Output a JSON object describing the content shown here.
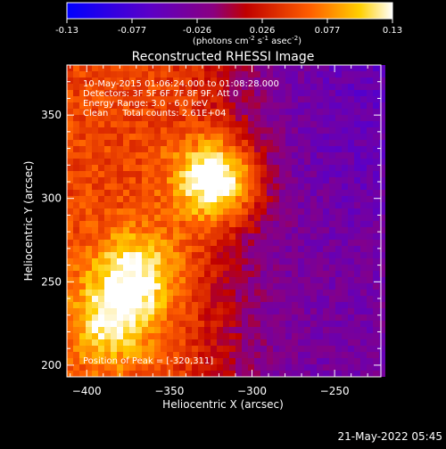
{
  "colorbar": {
    "tick_labels": [
      "-0.13",
      "-0.077",
      "-0.026",
      "0.026",
      "0.077",
      "0.13"
    ],
    "unit_prefix": "(photons cm",
    "unit_exp1": "-2",
    "unit_mid": " s",
    "unit_exp2": "-1",
    "unit_mid2": " asec",
    "unit_exp3": "-2",
    "unit_suffix": ")",
    "range": [
      -0.13,
      0.13
    ]
  },
  "chart_data": {
    "type": "heatmap",
    "title": "Reconstructed RHESSI Image",
    "xlabel": "Heliocentric X (arcsec)",
    "ylabel": "Heliocentric Y (arcsec)",
    "xlim": [
      -412,
      -222
    ],
    "ylim": [
      193,
      380
    ],
    "x_ticks": [
      -400,
      -350,
      -300,
      -250
    ],
    "y_ticks": [
      200,
      250,
      300,
      350
    ],
    "x_tick_labels": [
      "−400",
      "−350",
      "−300",
      "−250"
    ],
    "y_tick_labels": [
      "200",
      "250",
      "300",
      "350"
    ],
    "annotations": [
      "10-May-2015 01:06:24.000 to 01:08:28.000",
      "Detectors: 3F 5F 6F 7F 8F 9F, Att 0",
      "Energy Range: 3.0 - 6.0 keV",
      "Clean     Total counts: 2.61E+04"
    ],
    "peak_label": "Position of Peak = [-320,311]",
    "peak_position": [
      -320,
      311
    ],
    "colormap": "blue-purple-red-yellow-white",
    "sources": [
      {
        "x": -320,
        "y": 311,
        "amplitude": 0.13
      },
      {
        "x": -370,
        "y": 255,
        "amplitude": 0.08
      },
      {
        "x": -385,
        "y": 225,
        "amplitude": 0.07
      }
    ]
  },
  "timestamp": "21-May-2022 05:45"
}
